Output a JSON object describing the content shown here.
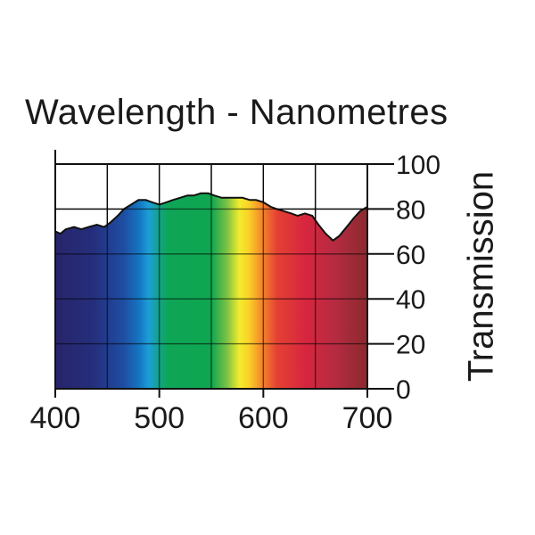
{
  "chart_data": {
    "type": "area",
    "title": "Wavelength - Nanometres",
    "xlabel": "",
    "ylabel": "Transmission",
    "xlim": [
      400,
      700
    ],
    "ylim": [
      0,
      100
    ],
    "x_ticks": [
      400,
      500,
      600,
      700
    ],
    "y_ticks": [
      0,
      20,
      40,
      60,
      80,
      100
    ],
    "grid": true,
    "fill": "visible spectrum gradient",
    "series": [
      {
        "x": [
          400,
          405,
          410,
          418,
          425,
          432,
          440,
          447,
          453,
          460,
          466,
          473,
          480,
          487,
          493,
          500,
          507,
          513,
          520,
          527,
          533,
          540,
          547,
          553,
          560,
          567,
          573,
          580,
          587,
          593,
          600,
          607,
          613,
          620,
          627,
          633,
          640,
          647,
          653,
          660,
          667,
          673,
          680,
          687,
          693,
          700
        ],
        "y": [
          70,
          69,
          71,
          72,
          71,
          72,
          73,
          72,
          74,
          77,
          80,
          82,
          84,
          84,
          83,
          82,
          83,
          84,
          85,
          86,
          86,
          87,
          87,
          86,
          85,
          85,
          85,
          85,
          84,
          84,
          83,
          81,
          80,
          79,
          78,
          77,
          78,
          77,
          73,
          69,
          66,
          68,
          72,
          76,
          79,
          81
        ]
      }
    ]
  }
}
